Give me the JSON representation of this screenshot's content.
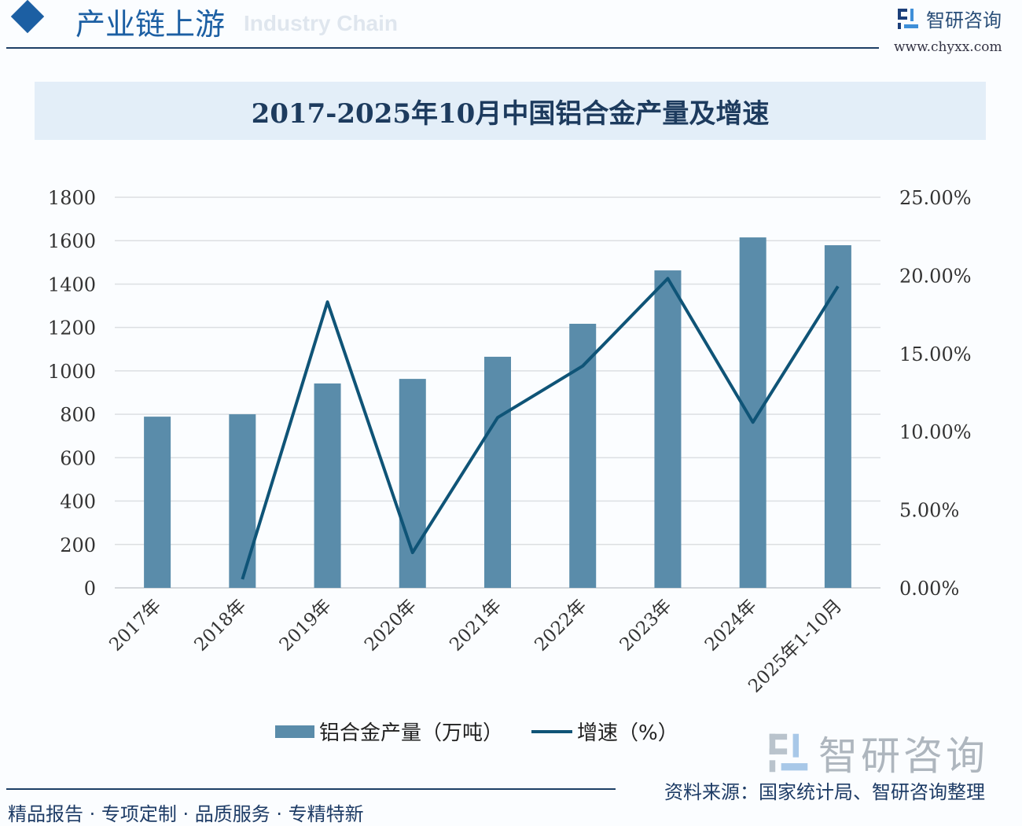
{
  "header": {
    "title": "产业链上游",
    "ghost_text": "Industry Chain",
    "brand": "智研咨询",
    "url": "www.chyxx.com"
  },
  "colors": {
    "bar": "#5a8caa",
    "line": "#0f5477",
    "accent": "#1c5fa3"
  },
  "chart_data": {
    "type": "bar+line",
    "title": "2017-2025年10月中国铝合金产量及增速",
    "categories": [
      "2017年",
      "2018年",
      "2019年",
      "2020年",
      "2021年",
      "2022年",
      "2023年",
      "2024年",
      "2025年1-10月"
    ],
    "series": [
      {
        "name": "铝合金产量（万吨）",
        "type": "bar",
        "axis": "left",
        "values": [
          789,
          800,
          942,
          963,
          1065,
          1217,
          1463,
          1615,
          1579
        ]
      },
      {
        "name": "增速（%）",
        "type": "line",
        "axis": "right",
        "values": [
          null,
          0.55,
          18.3,
          2.26,
          10.9,
          14.2,
          19.8,
          10.6,
          19.3
        ]
      }
    ],
    "y_left": {
      "range": [
        0,
        1800
      ],
      "ticks": [
        "0",
        "200",
        "400",
        "600",
        "800",
        "1000",
        "1200",
        "1400",
        "1600",
        "1800"
      ]
    },
    "y_right": {
      "range": [
        0,
        25
      ],
      "ticks": [
        "0.00%",
        "5.00%",
        "10.00%",
        "15.00%",
        "20.00%",
        "25.00%"
      ]
    },
    "grid": true,
    "legend_position": "bottom"
  },
  "legend": {
    "bar_label": "铝合金产量（万吨）",
    "line_label": "增速（%）"
  },
  "watermark": "智研咨询",
  "source": "资料来源：国家统计局、智研咨询整理",
  "footer": "精品报告 · 专项定制 · 品质服务 · 专精特新"
}
